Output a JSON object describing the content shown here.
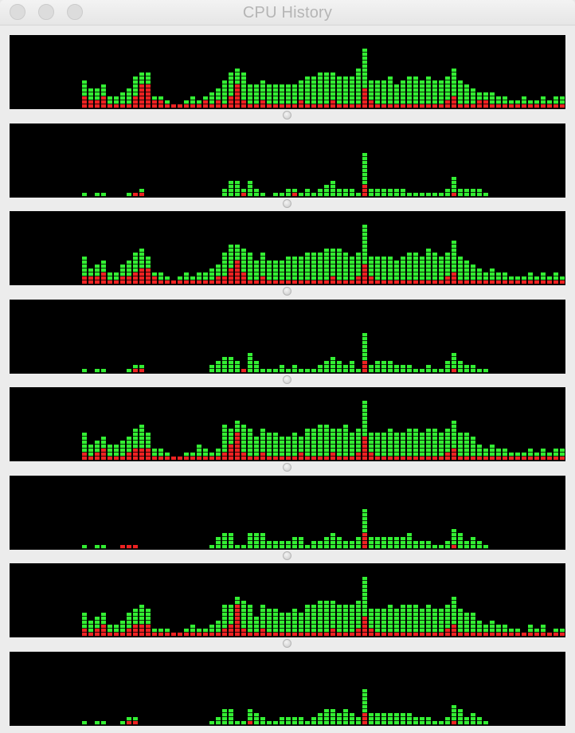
{
  "window": {
    "title": "CPU History",
    "buttons": [
      "close",
      "minimize",
      "zoom"
    ]
  },
  "colors": {
    "background": "#000000",
    "user": "#33ee33",
    "system": "#ee2222"
  },
  "columns": 84,
  "history": [
    {
      "core": 1,
      "user": [
        0,
        0,
        0,
        0,
        0,
        0,
        0,
        0,
        7,
        5,
        5,
        6,
        3,
        3,
        4,
        5,
        8,
        9,
        9,
        3,
        3,
        2,
        1,
        1,
        2,
        3,
        2,
        3,
        4,
        5,
        7,
        9,
        10,
        9,
        6,
        6,
        7,
        6,
        6,
        6,
        6,
        6,
        7,
        8,
        8,
        9,
        9,
        9,
        8,
        8,
        8,
        10,
        15,
        7,
        7,
        7,
        8,
        6,
        7,
        8,
        8,
        7,
        8,
        7,
        7,
        8,
        10,
        7,
        6,
        5,
        4,
        4,
        4,
        3,
        3,
        2,
        2,
        3,
        2,
        2,
        3,
        2,
        3,
        3
      ],
      "system": [
        0,
        0,
        0,
        0,
        0,
        0,
        0,
        0,
        3,
        2,
        2,
        3,
        1,
        1,
        1,
        1,
        3,
        6,
        6,
        2,
        2,
        1,
        1,
        1,
        1,
        1,
        1,
        2,
        1,
        2,
        1,
        3,
        6,
        2,
        1,
        1,
        2,
        1,
        1,
        1,
        1,
        1,
        2,
        1,
        1,
        1,
        1,
        2,
        1,
        1,
        1,
        1,
        5,
        2,
        1,
        1,
        1,
        1,
        1,
        1,
        1,
        1,
        1,
        1,
        1,
        2,
        3,
        1,
        1,
        1,
        2,
        2,
        1,
        1,
        1,
        1,
        1,
        1,
        1,
        1,
        1,
        1,
        1,
        1
      ]
    },
    {
      "core": 2,
      "user": [
        0,
        0,
        0,
        0,
        0,
        0,
        0,
        0,
        1,
        0,
        1,
        1,
        0,
        0,
        0,
        1,
        1,
        2,
        0,
        0,
        0,
        0,
        0,
        0,
        0,
        0,
        0,
        0,
        0,
        0,
        2,
        4,
        4,
        2,
        4,
        2,
        1,
        0,
        1,
        1,
        2,
        2,
        1,
        2,
        1,
        2,
        3,
        4,
        2,
        2,
        2,
        1,
        11,
        2,
        2,
        2,
        2,
        2,
        2,
        1,
        1,
        1,
        1,
        1,
        1,
        2,
        5,
        2,
        2,
        2,
        2,
        1,
        0,
        0,
        0,
        0,
        0,
        0,
        0,
        0,
        0,
        0,
        0,
        0
      ],
      "system": [
        0,
        0,
        0,
        0,
        0,
        0,
        0,
        0,
        0,
        0,
        0,
        0,
        0,
        0,
        0,
        0,
        1,
        1,
        0,
        0,
        0,
        0,
        0,
        0,
        0,
        0,
        0,
        0,
        0,
        0,
        0,
        0,
        0,
        1,
        0,
        0,
        0,
        0,
        0,
        0,
        0,
        1,
        0,
        0,
        0,
        0,
        0,
        0,
        0,
        0,
        0,
        0,
        3,
        0,
        0,
        0,
        0,
        0,
        0,
        0,
        0,
        0,
        0,
        0,
        0,
        0,
        1,
        0,
        0,
        0,
        0,
        0,
        0,
        0,
        0,
        0,
        0,
        0,
        0,
        0,
        0,
        0,
        0,
        0
      ]
    },
    {
      "core": 3,
      "user": [
        0,
        0,
        0,
        0,
        0,
        0,
        0,
        0,
        7,
        4,
        5,
        6,
        3,
        3,
        5,
        6,
        8,
        9,
        7,
        3,
        3,
        2,
        1,
        2,
        3,
        2,
        3,
        3,
        4,
        5,
        8,
        10,
        10,
        9,
        8,
        6,
        8,
        6,
        6,
        6,
        7,
        7,
        7,
        8,
        8,
        8,
        9,
        9,
        9,
        8,
        7,
        8,
        15,
        7,
        7,
        7,
        7,
        6,
        7,
        8,
        8,
        7,
        9,
        8,
        7,
        8,
        11,
        7,
        6,
        5,
        4,
        3,
        4,
        3,
        3,
        2,
        2,
        2,
        3,
        2,
        3,
        2,
        3,
        2
      ],
      "system": [
        0,
        0,
        0,
        0,
        0,
        0,
        0,
        0,
        2,
        2,
        2,
        3,
        1,
        1,
        2,
        2,
        3,
        4,
        4,
        2,
        1,
        1,
        1,
        1,
        1,
        1,
        1,
        1,
        1,
        2,
        2,
        4,
        6,
        3,
        1,
        1,
        2,
        1,
        1,
        1,
        1,
        1,
        1,
        1,
        1,
        1,
        1,
        2,
        1,
        1,
        1,
        2,
        5,
        2,
        1,
        1,
        1,
        1,
        1,
        1,
        1,
        1,
        1,
        1,
        1,
        2,
        3,
        1,
        1,
        1,
        1,
        1,
        1,
        1,
        1,
        1,
        1,
        1,
        1,
        1,
        1,
        1,
        1,
        1
      ]
    },
    {
      "core": 4,
      "user": [
        0,
        0,
        0,
        0,
        0,
        0,
        0,
        0,
        1,
        0,
        1,
        1,
        0,
        0,
        0,
        1,
        2,
        2,
        0,
        0,
        0,
        0,
        0,
        0,
        0,
        0,
        0,
        0,
        2,
        3,
        4,
        4,
        3,
        1,
        5,
        3,
        1,
        1,
        1,
        2,
        1,
        2,
        1,
        1,
        1,
        2,
        3,
        4,
        3,
        2,
        3,
        1,
        10,
        2,
        3,
        3,
        3,
        2,
        2,
        2,
        1,
        1,
        2,
        1,
        1,
        3,
        5,
        3,
        2,
        2,
        1,
        1,
        0,
        0,
        0,
        0,
        0,
        0,
        0,
        0,
        0,
        0,
        0,
        0
      ],
      "system": [
        0,
        0,
        0,
        0,
        0,
        0,
        0,
        0,
        0,
        0,
        0,
        0,
        0,
        0,
        0,
        0,
        1,
        1,
        0,
        0,
        0,
        0,
        0,
        0,
        0,
        0,
        0,
        0,
        0,
        0,
        0,
        0,
        0,
        1,
        0,
        0,
        0,
        0,
        0,
        0,
        0,
        0,
        0,
        0,
        0,
        0,
        0,
        0,
        0,
        0,
        0,
        0,
        3,
        0,
        0,
        0,
        0,
        0,
        0,
        0,
        0,
        0,
        0,
        0,
        0,
        0,
        1,
        0,
        0,
        0,
        0,
        0,
        0,
        0,
        0,
        0,
        0,
        0,
        0,
        0,
        0,
        0,
        0,
        0
      ]
    },
    {
      "core": 5,
      "user": [
        0,
        0,
        0,
        0,
        0,
        0,
        0,
        0,
        7,
        4,
        5,
        6,
        4,
        4,
        5,
        6,
        8,
        9,
        7,
        3,
        3,
        2,
        1,
        1,
        2,
        2,
        4,
        3,
        2,
        3,
        9,
        8,
        10,
        9,
        8,
        6,
        8,
        7,
        7,
        6,
        6,
        7,
        6,
        8,
        8,
        9,
        9,
        8,
        8,
        9,
        7,
        8,
        15,
        7,
        7,
        7,
        8,
        7,
        7,
        8,
        8,
        7,
        8,
        8,
        7,
        8,
        10,
        7,
        7,
        6,
        4,
        3,
        4,
        3,
        3,
        2,
        2,
        2,
        3,
        2,
        3,
        2,
        3,
        3
      ],
      "system": [
        0,
        0,
        0,
        0,
        0,
        0,
        0,
        0,
        2,
        1,
        2,
        3,
        1,
        1,
        1,
        2,
        3,
        3,
        3,
        1,
        1,
        1,
        1,
        1,
        1,
        1,
        1,
        1,
        1,
        1,
        2,
        4,
        7,
        2,
        1,
        1,
        2,
        1,
        1,
        1,
        1,
        1,
        2,
        1,
        1,
        1,
        1,
        2,
        1,
        1,
        1,
        2,
        6,
        2,
        1,
        1,
        1,
        1,
        1,
        1,
        1,
        1,
        1,
        1,
        1,
        2,
        3,
        1,
        1,
        1,
        1,
        1,
        1,
        1,
        1,
        1,
        1,
        1,
        1,
        1,
        1,
        1,
        1,
        1
      ]
    },
    {
      "core": 6,
      "user": [
        0,
        0,
        0,
        0,
        0,
        0,
        0,
        0,
        1,
        0,
        1,
        1,
        0,
        0,
        1,
        1,
        1,
        0,
        0,
        0,
        0,
        0,
        0,
        0,
        0,
        0,
        0,
        0,
        1,
        3,
        4,
        4,
        1,
        1,
        4,
        4,
        4,
        2,
        2,
        2,
        2,
        3,
        3,
        1,
        2,
        2,
        3,
        4,
        3,
        2,
        2,
        3,
        10,
        3,
        3,
        3,
        3,
        3,
        3,
        4,
        2,
        2,
        2,
        1,
        1,
        2,
        5,
        4,
        2,
        3,
        2,
        1,
        0,
        0,
        0,
        0,
        0,
        0,
        0,
        0,
        0,
        0,
        0,
        0
      ],
      "system": [
        0,
        0,
        0,
        0,
        0,
        0,
        0,
        0,
        0,
        0,
        0,
        0,
        0,
        0,
        1,
        1,
        1,
        0,
        0,
        0,
        0,
        0,
        0,
        0,
        0,
        0,
        0,
        0,
        0,
        0,
        0,
        0,
        0,
        0,
        0,
        0,
        0,
        0,
        0,
        0,
        0,
        0,
        0,
        0,
        0,
        0,
        0,
        0,
        0,
        0,
        0,
        0,
        4,
        0,
        0,
        0,
        0,
        0,
        0,
        0,
        0,
        0,
        0,
        0,
        0,
        0,
        1,
        0,
        0,
        0,
        0,
        0,
        0,
        0,
        0,
        0,
        0,
        0,
        0,
        0,
        0,
        0,
        0,
        0
      ]
    },
    {
      "core": 7,
      "user": [
        0,
        0,
        0,
        0,
        0,
        0,
        0,
        0,
        6,
        4,
        5,
        6,
        3,
        3,
        4,
        6,
        7,
        8,
        7,
        2,
        2,
        2,
        1,
        1,
        2,
        3,
        2,
        2,
        3,
        4,
        8,
        8,
        10,
        9,
        8,
        5,
        8,
        7,
        7,
        6,
        6,
        7,
        6,
        8,
        8,
        9,
        9,
        9,
        8,
        8,
        8,
        9,
        15,
        7,
        7,
        7,
        8,
        7,
        8,
        8,
        8,
        7,
        8,
        7,
        7,
        8,
        10,
        7,
        6,
        6,
        4,
        3,
        4,
        3,
        3,
        2,
        2,
        1,
        3,
        2,
        3,
        1,
        2,
        2
      ],
      "system": [
        0,
        0,
        0,
        0,
        0,
        0,
        0,
        0,
        2,
        1,
        2,
        3,
        1,
        1,
        1,
        2,
        3,
        3,
        3,
        1,
        1,
        1,
        1,
        1,
        1,
        1,
        1,
        1,
        1,
        1,
        2,
        3,
        8,
        2,
        1,
        1,
        2,
        1,
        1,
        1,
        1,
        1,
        1,
        1,
        1,
        1,
        1,
        2,
        1,
        1,
        1,
        2,
        5,
        2,
        1,
        1,
        1,
        1,
        1,
        1,
        1,
        1,
        1,
        1,
        1,
        2,
        3,
        1,
        1,
        1,
        1,
        1,
        1,
        1,
        1,
        1,
        1,
        1,
        1,
        1,
        1,
        1,
        1,
        1
      ]
    },
    {
      "core": 8,
      "user": [
        0,
        0,
        0,
        0,
        0,
        0,
        0,
        0,
        1,
        0,
        1,
        1,
        0,
        0,
        1,
        2,
        2,
        0,
        0,
        0,
        0,
        0,
        0,
        0,
        0,
        0,
        0,
        0,
        1,
        2,
        4,
        4,
        1,
        1,
        4,
        3,
        2,
        1,
        1,
        2,
        2,
        2,
        2,
        1,
        2,
        3,
        4,
        4,
        3,
        4,
        3,
        2,
        9,
        3,
        3,
        3,
        3,
        3,
        3,
        3,
        2,
        2,
        2,
        1,
        1,
        2,
        5,
        4,
        2,
        3,
        2,
        1,
        0,
        0,
        0,
        0,
        0,
        0,
        0,
        0,
        0,
        0,
        0,
        0
      ],
      "system": [
        0,
        0,
        0,
        0,
        0,
        0,
        0,
        0,
        0,
        0,
        0,
        0,
        0,
        0,
        0,
        1,
        1,
        0,
        0,
        0,
        0,
        0,
        0,
        0,
        0,
        0,
        0,
        0,
        0,
        0,
        0,
        0,
        0,
        0,
        1,
        0,
        0,
        0,
        0,
        0,
        0,
        0,
        0,
        0,
        0,
        0,
        0,
        0,
        0,
        0,
        0,
        0,
        3,
        0,
        0,
        0,
        0,
        0,
        0,
        0,
        0,
        0,
        0,
        0,
        0,
        0,
        1,
        0,
        0,
        0,
        0,
        0,
        0,
        0,
        0,
        0,
        0,
        0,
        0,
        0,
        0,
        0,
        0,
        0
      ]
    }
  ]
}
